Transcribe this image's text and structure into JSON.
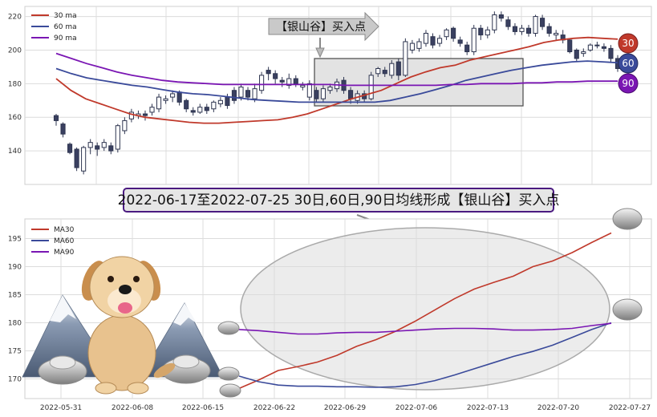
{
  "chart_data": [
    {
      "type": "candlestick",
      "ylim": [
        120,
        226
      ],
      "yticks": [
        140,
        160,
        180,
        200,
        220
      ],
      "grid": true,
      "legend_position": "top-left",
      "legend": [
        {
          "label": "30 ma",
          "color": "#c0392b"
        },
        {
          "label": "60 ma",
          "color": "#3a4a9a"
        },
        {
          "label": "90 ma",
          "color": "#7a16b3"
        }
      ],
      "candles": [
        [
          161,
          158,
          162,
          155
        ],
        [
          156,
          150,
          157,
          148
        ],
        [
          144,
          139,
          145,
          138
        ],
        [
          141,
          130,
          142,
          128
        ],
        [
          128,
          142,
          143,
          126
        ],
        [
          142,
          145,
          147,
          138
        ],
        [
          143,
          141,
          145,
          137
        ],
        [
          142,
          145,
          147,
          140
        ],
        [
          143,
          140,
          145,
          138
        ],
        [
          141,
          155,
          156,
          139
        ],
        [
          152,
          158,
          160,
          150
        ],
        [
          159,
          163,
          165,
          157
        ],
        [
          161,
          162,
          164,
          159
        ],
        [
          162,
          161,
          164,
          158
        ],
        [
          163,
          166,
          168,
          161
        ],
        [
          165,
          172,
          174,
          163
        ],
        [
          170,
          171,
          173,
          168
        ],
        [
          172,
          174,
          176,
          169
        ],
        [
          175,
          169,
          176,
          167
        ],
        [
          170,
          165,
          171,
          163
        ],
        [
          164,
          163,
          166,
          161
        ],
        [
          163,
          166,
          168,
          162
        ],
        [
          166,
          164,
          168,
          162
        ],
        [
          165,
          169,
          170,
          163
        ],
        [
          168,
          170,
          172,
          166
        ],
        [
          172,
          167,
          174,
          165
        ],
        [
          176,
          170,
          178,
          168
        ],
        [
          172,
          178,
          180,
          170
        ],
        [
          176,
          172,
          178,
          170
        ],
        [
          171,
          177,
          180,
          169
        ],
        [
          176,
          185,
          187,
          174
        ],
        [
          188,
          186,
          190,
          182
        ],
        [
          186,
          183,
          188,
          180
        ],
        [
          182,
          181,
          184,
          178
        ],
        [
          179,
          183,
          186,
          177
        ],
        [
          183,
          180,
          185,
          178
        ],
        [
          178,
          179,
          181,
          176
        ],
        [
          172,
          180,
          182,
          170
        ],
        [
          176,
          171,
          178,
          169
        ],
        [
          171,
          177,
          179,
          169
        ],
        [
          176,
          178,
          180,
          174
        ],
        [
          177,
          181,
          183,
          175
        ],
        [
          182,
          176,
          184,
          174
        ],
        [
          176,
          171,
          178,
          168
        ],
        [
          170,
          174,
          176,
          168
        ],
        [
          174,
          171,
          176,
          169
        ],
        [
          171,
          185,
          187,
          170
        ],
        [
          186,
          189,
          190,
          184
        ],
        [
          188,
          186,
          190,
          184
        ],
        [
          185,
          192,
          194,
          183
        ],
        [
          193,
          185,
          195,
          182
        ],
        [
          185,
          205,
          207,
          184
        ],
        [
          200,
          204,
          206,
          198
        ],
        [
          201,
          205,
          207,
          199
        ],
        [
          204,
          210,
          212,
          202
        ],
        [
          208,
          203,
          210,
          201
        ],
        [
          204,
          207,
          209,
          202
        ],
        [
          208,
          212,
          213,
          206
        ],
        [
          213,
          207,
          214,
          205
        ],
        [
          206,
          204,
          208,
          202
        ],
        [
          203,
          199,
          205,
          197
        ],
        [
          199,
          213,
          215,
          197
        ],
        [
          213,
          209,
          215,
          206
        ],
        [
          209,
          212,
          214,
          207
        ],
        [
          212,
          221,
          223,
          210
        ],
        [
          221,
          219,
          223,
          217
        ],
        [
          218,
          214,
          220,
          212
        ],
        [
          214,
          211,
          216,
          209
        ],
        [
          211,
          213,
          215,
          209
        ],
        [
          213,
          210,
          215,
          208
        ],
        [
          210,
          220,
          221,
          208
        ],
        [
          219,
          214,
          221,
          212
        ],
        [
          214,
          210,
          216,
          208
        ],
        [
          209,
          210,
          212,
          206
        ],
        [
          209,
          206,
          212,
          204
        ],
        [
          206,
          199,
          207,
          198
        ],
        [
          200,
          195,
          201,
          193
        ],
        [
          198,
          199,
          201,
          196
        ],
        [
          200,
          203,
          204,
          199
        ],
        [
          203,
          203,
          205,
          201
        ],
        [
          202,
          201,
          204,
          199
        ],
        [
          201,
          195,
          203,
          193
        ],
        [
          195,
          189,
          197,
          187
        ]
      ],
      "ma30": [
        183,
        176,
        171,
        168,
        165,
        162,
        160,
        159,
        158,
        157,
        156.5,
        156.5,
        157,
        157.5,
        158,
        158.5,
        160,
        162,
        165,
        168,
        171,
        173.5,
        176,
        180,
        184,
        187,
        189.5,
        191,
        194,
        196,
        198,
        200,
        202,
        204.5,
        206,
        207,
        207.5,
        207,
        206.5
      ],
      "ma60": [
        189,
        186,
        183.5,
        182,
        180.5,
        179,
        178,
        176.5,
        175,
        174,
        173.5,
        172.5,
        171.5,
        170.5,
        170,
        169.5,
        169,
        169,
        169,
        169,
        169,
        169,
        170,
        172,
        174,
        176.5,
        179,
        182,
        184,
        186,
        188,
        189.5,
        191,
        192,
        193,
        193.5,
        193,
        192.5
      ],
      "ma90": [
        198,
        195,
        192,
        189.5,
        187,
        185,
        183.5,
        182,
        181,
        180.5,
        180,
        179.5,
        179.5,
        179.5,
        179.5,
        179.5,
        179.5,
        179.5,
        179.5,
        179,
        179,
        179,
        179,
        179,
        179,
        179,
        179.5,
        179.5,
        180,
        180,
        180,
        180.5,
        180.5,
        181,
        181,
        181.5,
        181.5,
        181.5
      ],
      "annotation": "【银山谷】买入点",
      "badges": [
        "30",
        "60",
        "90"
      ]
    },
    {
      "type": "line",
      "title": "2022-06-17至2022-07-25 30日,60日,90日均线形成【银山谷】买入点",
      "ylim": [
        166.5,
        198.5
      ],
      "yticks": [
        170,
        175,
        180,
        185,
        190,
        195
      ],
      "xticks": [
        "2022-05-31",
        "2022-06-08",
        "2022-06-15",
        "2022-06-22",
        "2022-06-29",
        "2022-07-06",
        "2022-07-13",
        "2022-07-20",
        "2022-07-27"
      ],
      "grid": true,
      "legend_position": "top-left",
      "series": [
        {
          "name": "MA30",
          "color": "#c0392b",
          "values": [
            168.3,
            169.8,
            171.5,
            172.2,
            173.0,
            174.2,
            175.8,
            177.0,
            178.5,
            180.3,
            182.3,
            184.3,
            186.0,
            187.2,
            188.3,
            190.0,
            191.0,
            192.5,
            194.3,
            196.0
          ]
        },
        {
          "name": "MA60",
          "color": "#3a4a9a",
          "values": [
            170.5,
            169.5,
            168.9,
            168.7,
            168.7,
            168.6,
            168.6,
            168.5,
            168.6,
            169.0,
            169.7,
            170.7,
            171.8,
            172.9,
            174.0,
            174.9,
            176.0,
            177.4,
            178.8,
            180.0
          ]
        },
        {
          "name": "MA90",
          "color": "#7a16b3",
          "values": [
            178.8,
            178.6,
            178.3,
            178.0,
            178.0,
            178.2,
            178.3,
            178.3,
            178.5,
            178.7,
            178.9,
            179.0,
            179.0,
            178.9,
            178.7,
            178.7,
            178.8,
            179.0,
            179.5,
            179.9
          ]
        }
      ]
    }
  ]
}
